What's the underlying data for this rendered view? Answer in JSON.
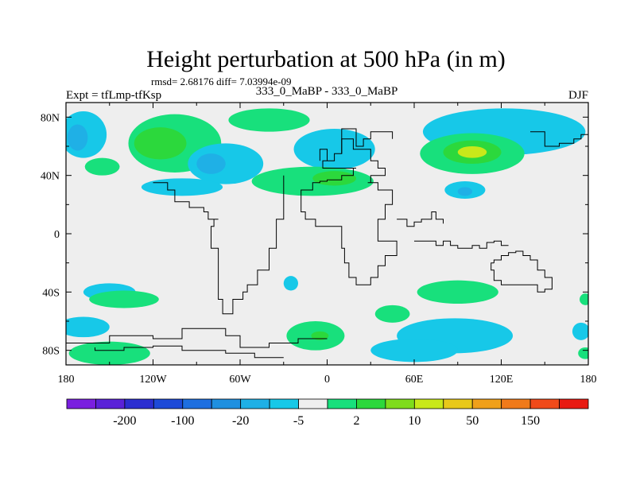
{
  "chart_data": {
    "type": "heatmap",
    "title": "Height perturbation at 500 hPa (in m)",
    "stats": "rmsd= 2.68176 diff= 7.03994e-09",
    "left_label": "Expt = tfLmp-tfKsp",
    "center_label": "333_0_MaBP - 333_0_MaBP",
    "right_label": "DJF",
    "xlim": [
      -180,
      180
    ],
    "ylim": [
      -90,
      90
    ],
    "x_ticks": [
      {
        "value": -180,
        "label": "180"
      },
      {
        "value": -120,
        "label": "120W"
      },
      {
        "value": -60,
        "label": "60W"
      },
      {
        "value": 0,
        "label": "0"
      },
      {
        "value": 60,
        "label": "60E"
      },
      {
        "value": 120,
        "label": "120E"
      },
      {
        "value": 180,
        "label": "180"
      }
    ],
    "y_ticks": [
      {
        "value": 80,
        "label": "80N"
      },
      {
        "value": 40,
        "label": "40N"
      },
      {
        "value": 0,
        "label": "0"
      },
      {
        "value": -40,
        "label": "40S"
      },
      {
        "value": -80,
        "label": "80S"
      }
    ],
    "colorbar": {
      "colors": [
        "#7a1fe0",
        "#5a22d8",
        "#2b2ed0",
        "#1d4ad8",
        "#1e6fe0",
        "#1f90e0",
        "#1fb0e6",
        "#17c8e8",
        "#eeeeee",
        "#18e07c",
        "#2cd83c",
        "#7fdc1c",
        "#c8e81a",
        "#e8c81a",
        "#f0a01a",
        "#f07a1a",
        "#f04a1a",
        "#e81a12"
      ],
      "labels": [
        {
          "after_index": 1,
          "text": "-200"
        },
        {
          "after_index": 3,
          "text": "-100"
        },
        {
          "after_index": 5,
          "text": "-20"
        },
        {
          "after_index": 7,
          "text": "-5"
        },
        {
          "after_index": 9,
          "text": "2"
        },
        {
          "after_index": 11,
          "text": "10"
        },
        {
          "after_index": 13,
          "text": "50"
        },
        {
          "after_index": 15,
          "text": "150"
        }
      ]
    },
    "anomaly_colors": {
      "neg_weak": "#17c8e8",
      "neg_mid": "#1fb0e6",
      "neg_strong": "#1f90e0",
      "pos_weak": "#18e07c",
      "pos_mid": "#2cd83c",
      "pos_strong": "#c8e81a",
      "zero": "#eeeeee"
    },
    "anomalies": [
      {
        "name": "np-blue-west",
        "lon": -168,
        "lat": 68,
        "rlon": 16,
        "rlat": 16,
        "level": "neg_weak"
      },
      {
        "name": "np-blue-west-core",
        "lon": -172,
        "lat": 66,
        "rlon": 7,
        "rlat": 9,
        "level": "neg_mid"
      },
      {
        "name": "green-arc-atlantic",
        "lon": -105,
        "lat": 62,
        "rlon": 32,
        "rlat": 20,
        "level": "pos_weak"
      },
      {
        "name": "green-arc-atlantic-core",
        "lon": -115,
        "lat": 62,
        "rlon": 18,
        "rlat": 11,
        "level": "pos_mid"
      },
      {
        "name": "green-arc-northeast",
        "lon": -40,
        "lat": 78,
        "rlon": 28,
        "rlat": 8,
        "level": "pos_weak"
      },
      {
        "name": "green-arc-southwest",
        "lon": -155,
        "lat": 46,
        "rlon": 12,
        "rlat": 6,
        "level": "pos_weak"
      },
      {
        "name": "blue-patch-north-atlantic",
        "lon": -70,
        "lat": 48,
        "rlon": 26,
        "rlat": 14,
        "level": "neg_weak"
      },
      {
        "name": "blue-patch-north-atlantic-core",
        "lon": -80,
        "lat": 48,
        "rlon": 10,
        "rlat": 7,
        "level": "neg_mid"
      },
      {
        "name": "blue-patch-europe",
        "lon": 5,
        "lat": 58,
        "rlon": 28,
        "rlat": 14,
        "level": "neg_weak"
      },
      {
        "name": "green-band-midlat",
        "lon": -10,
        "lat": 36,
        "rlon": 42,
        "rlat": 10,
        "level": "pos_weak"
      },
      {
        "name": "green-band-midlat-core",
        "lon": 5,
        "lat": 38,
        "rlon": 15,
        "rlat": 5,
        "level": "pos_mid"
      },
      {
        "name": "blue-band-midlat",
        "lon": -100,
        "lat": 32,
        "rlon": 28,
        "rlat": 6,
        "level": "neg_weak"
      },
      {
        "name": "blue-northeast-asia",
        "lon": 122,
        "lat": 70,
        "rlon": 56,
        "rlat": 16,
        "level": "neg_weak"
      },
      {
        "name": "green-siberia",
        "lon": 100,
        "lat": 55,
        "rlon": 36,
        "rlat": 14,
        "level": "pos_weak"
      },
      {
        "name": "green-siberia-mid",
        "lon": 100,
        "lat": 56,
        "rlon": 20,
        "rlat": 8,
        "level": "pos_mid"
      },
      {
        "name": "yellow-siberia-core",
        "lon": 100,
        "lat": 56,
        "rlon": 10,
        "rlat": 4,
        "level": "pos_strong"
      },
      {
        "name": "blue-east-asia",
        "lon": 95,
        "lat": 30,
        "rlon": 14,
        "rlat": 6,
        "level": "neg_weak"
      },
      {
        "name": "blue-east-asia-core",
        "lon": 95,
        "lat": 29,
        "rlon": 5,
        "rlat": 3,
        "level": "neg_mid"
      },
      {
        "name": "blue-south-pacific",
        "lon": -150,
        "lat": -40,
        "rlon": 18,
        "rlat": 6,
        "level": "neg_weak"
      },
      {
        "name": "green-south-pacific",
        "lon": -140,
        "lat": -45,
        "rlon": 24,
        "rlat": 6,
        "level": "pos_weak"
      },
      {
        "name": "blue-south-pacific-low",
        "lon": -168,
        "lat": -64,
        "rlon": 18,
        "rlat": 7,
        "level": "neg_weak"
      },
      {
        "name": "green-antarctic-pac",
        "lon": -150,
        "lat": -82,
        "rlon": 28,
        "rlat": 8,
        "level": "pos_weak"
      },
      {
        "name": "blue-south-atlantic-small",
        "lon": -25,
        "lat": -34,
        "rlon": 5,
        "rlat": 5,
        "level": "neg_weak"
      },
      {
        "name": "green-south-atlantic",
        "lon": -8,
        "lat": -70,
        "rlon": 20,
        "rlat": 10,
        "level": "pos_weak"
      },
      {
        "name": "green-south-atlantic-core",
        "lon": -5,
        "lat": -70,
        "rlon": 6,
        "rlat": 3,
        "level": "pos_mid"
      },
      {
        "name": "green-indian-ocean",
        "lon": 90,
        "lat": -40,
        "rlon": 28,
        "rlat": 8,
        "level": "pos_weak"
      },
      {
        "name": "green-indian-small",
        "lon": 45,
        "lat": -55,
        "rlon": 12,
        "rlat": 6,
        "level": "pos_weak"
      },
      {
        "name": "blue-southern-indian",
        "lon": 88,
        "lat": -70,
        "rlon": 40,
        "rlat": 12,
        "level": "neg_weak"
      },
      {
        "name": "blue-southern-indian-west",
        "lon": 60,
        "lat": -80,
        "rlon": 30,
        "rlat": 8,
        "level": "neg_weak"
      },
      {
        "name": "blue-southern-ocean-east",
        "lon": 175,
        "lat": -67,
        "rlon": 6,
        "rlat": 6,
        "level": "neg_weak"
      },
      {
        "name": "green-southern-ocean-east",
        "lon": 178,
        "lat": -82,
        "rlon": 5,
        "rlat": 4,
        "level": "pos_weak"
      },
      {
        "name": "green-southern-ocean-east-mid",
        "lon": 178,
        "lat": -45,
        "rlon": 4,
        "rlat": 4,
        "level": "pos_weak"
      }
    ],
    "coastlines": [
      [
        [
          10,
          60
        ],
        [
          10,
          65
        ],
        [
          18,
          65
        ],
        [
          18,
          58
        ],
        [
          30,
          58
        ],
        [
          30,
          55
        ],
        [
          35,
          50
        ],
        [
          35,
          45
        ],
        [
          40,
          45
        ],
        [
          40,
          40
        ],
        [
          30,
          40
        ],
        [
          28,
          35
        ],
        [
          35,
          35
        ],
        [
          35,
          32
        ],
        [
          45,
          30
        ],
        [
          45,
          25
        ],
        [
          40,
          20
        ],
        [
          35,
          10
        ],
        [
          35,
          0
        ],
        [
          45,
          -5
        ],
        [
          48,
          -5
        ],
        [
          48,
          -12
        ],
        [
          40,
          -15
        ],
        [
          35,
          -22
        ],
        [
          30,
          -30
        ],
        [
          20,
          -35
        ],
        [
          15,
          -30
        ],
        [
          12,
          -20
        ],
        [
          10,
          -10
        ],
        [
          10,
          0
        ],
        [
          5,
          5
        ],
        [
          0,
          5
        ],
        [
          -8,
          5
        ],
        [
          -15,
          10
        ],
        [
          -18,
          15
        ],
        [
          -18,
          25
        ],
        [
          -10,
          30
        ],
        [
          -5,
          35
        ],
        [
          0,
          36
        ],
        [
          10,
          37
        ],
        [
          12,
          40
        ],
        [
          18,
          40
        ],
        [
          20,
          45
        ],
        [
          10,
          45
        ],
        [
          5,
          45
        ],
        [
          -3,
          45
        ],
        [
          -3,
          48
        ],
        [
          5,
          50
        ],
        [
          10,
          55
        ],
        [
          10,
          60
        ]
      ],
      [
        [
          -30,
          40
        ],
        [
          -30,
          15
        ],
        [
          -35,
          10
        ],
        [
          -35,
          -5
        ],
        [
          -40,
          -10
        ],
        [
          -40,
          -20
        ],
        [
          -48,
          -25
        ],
        [
          -55,
          -35
        ],
        [
          -58,
          -40
        ],
        [
          -65,
          -45
        ],
        [
          -68,
          -55
        ],
        [
          -72,
          -55
        ],
        [
          -75,
          -45
        ],
        [
          -75,
          -25
        ],
        [
          -80,
          -10
        ],
        [
          -80,
          0
        ],
        [
          -78,
          5
        ],
        [
          -75,
          10
        ],
        [
          -82,
          10
        ],
        [
          -85,
          15
        ],
        [
          -95,
          18
        ],
        [
          -105,
          22
        ],
        [
          -110,
          30
        ],
        [
          -120,
          35
        ]
      ],
      [
        [
          60,
          -5
        ],
        [
          75,
          -5
        ],
        [
          80,
          -8
        ],
        [
          85,
          -5
        ],
        [
          90,
          -8
        ],
        [
          100,
          -10
        ],
        [
          105,
          -8
        ],
        [
          110,
          -10
        ],
        [
          115,
          -6
        ],
        [
          120,
          -5
        ],
        [
          125,
          -8
        ]
      ],
      [
        [
          115,
          -20
        ],
        [
          120,
          -18
        ],
        [
          125,
          -15
        ],
        [
          130,
          -13
        ],
        [
          135,
          -12
        ],
        [
          140,
          -15
        ],
        [
          145,
          -18
        ],
        [
          150,
          -25
        ],
        [
          155,
          -30
        ],
        [
          155,
          -35
        ],
        [
          150,
          -38
        ],
        [
          145,
          -40
        ],
        [
          135,
          -35
        ],
        [
          120,
          -35
        ],
        [
          115,
          -32
        ],
        [
          113,
          -25
        ],
        [
          115,
          -20
        ]
      ],
      [
        [
          -180,
          -70
        ],
        [
          -150,
          -75
        ],
        [
          -120,
          -70
        ],
        [
          -100,
          -72
        ],
        [
          -70,
          -65
        ],
        [
          -60,
          -70
        ],
        [
          -40,
          -78
        ],
        [
          -20,
          -75
        ],
        [
          0,
          -72
        ]
      ],
      [
        [
          -160,
          -78
        ],
        [
          -140,
          -80
        ],
        [
          -120,
          -78
        ],
        [
          -100,
          -77
        ],
        [
          -70,
          -80
        ],
        [
          -50,
          -82
        ],
        [
          -30,
          -85
        ]
      ],
      [
        [
          10,
          55
        ],
        [
          10,
          70
        ],
        [
          20,
          72
        ],
        [
          20,
          62
        ],
        [
          25,
          60
        ],
        [
          30,
          65
        ],
        [
          35,
          70
        ],
        [
          45,
          70
        ],
        [
          45,
          65
        ]
      ],
      [
        [
          -5,
          50
        ],
        [
          -5,
          58
        ],
        [
          0,
          58
        ],
        [
          0,
          50
        ]
      ],
      [
        [
          48,
          10
        ],
        [
          55,
          10
        ],
        [
          60,
          5
        ],
        [
          65,
          8
        ],
        [
          72,
          10
        ],
        [
          75,
          15
        ],
        [
          80,
          10
        ],
        [
          80,
          7
        ]
      ],
      [
        [
          140,
          70
        ],
        [
          150,
          70
        ],
        [
          160,
          60
        ],
        [
          170,
          62
        ],
        [
          175,
          65
        ],
        [
          180,
          68
        ]
      ]
    ]
  }
}
